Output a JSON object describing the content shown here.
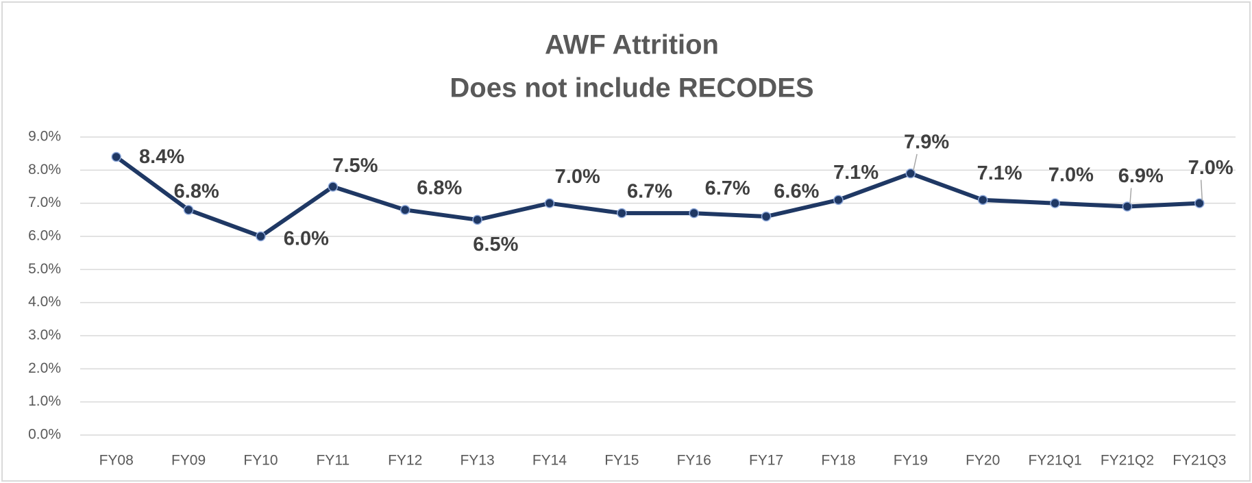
{
  "chart_data": {
    "type": "line",
    "title": [
      "AWF Attrition",
      "Does not include RECODES"
    ],
    "categories": [
      "FY08",
      "FY09",
      "FY10",
      "FY11",
      "FY12",
      "FY13",
      "FY14",
      "FY15",
      "FY16",
      "FY17",
      "FY18",
      "FY19",
      "FY20",
      "FY21Q1",
      "FY21Q2",
      "FY21Q3"
    ],
    "series": [
      {
        "name": "AWF Attrition",
        "color": "#1f3864",
        "values": [
          8.4,
          6.8,
          6.0,
          7.5,
          6.8,
          6.5,
          7.0,
          6.7,
          6.7,
          6.6,
          7.1,
          7.9,
          7.1,
          7.0,
          6.9,
          7.0
        ],
        "value_labels": [
          "8.4%",
          "6.8%",
          "6.0%",
          "7.5%",
          "6.8%",
          "6.5%",
          "7.0%",
          "6.7%",
          "6.7%",
          "6.6%",
          "7.1%",
          "7.9%",
          "7.1%",
          "7.0%",
          "6.9%",
          "7.0%"
        ]
      }
    ],
    "ylim": [
      0,
      9
    ],
    "yticks": [
      {
        "value": 0,
        "label": "0.0%"
      },
      {
        "value": 1,
        "label": "1.0%"
      },
      {
        "value": 2,
        "label": "2.0%"
      },
      {
        "value": 3,
        "label": "3.0%"
      },
      {
        "value": 4,
        "label": "4.0%"
      },
      {
        "value": 5,
        "label": "5.0%"
      },
      {
        "value": 6,
        "label": "6.0%"
      },
      {
        "value": 7,
        "label": "7.0%"
      },
      {
        "value": 8,
        "label": "8.0%"
      },
      {
        "value": 9,
        "label": "9.0%"
      }
    ],
    "grid": true
  }
}
